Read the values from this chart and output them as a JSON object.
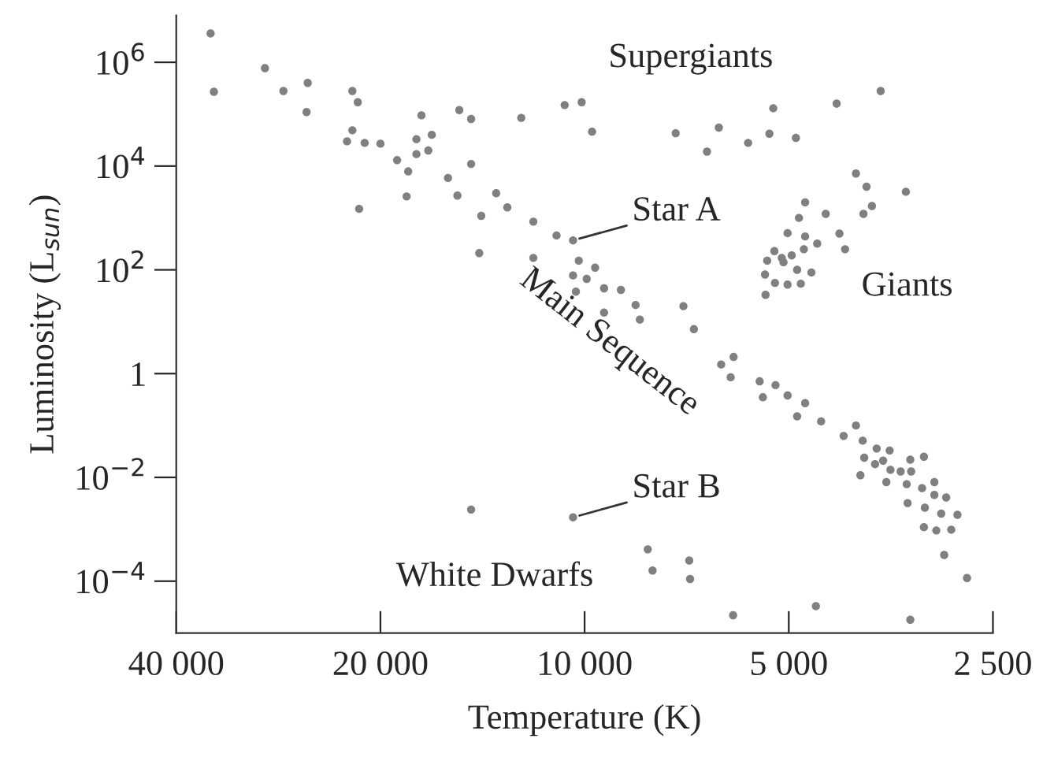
{
  "chart_data": {
    "type": "scatter",
    "xlabel": "Temperature (K)",
    "ylabel": "Luminosity (L$_{sun}$)",
    "log": "xy",
    "grid": false,
    "marker": "circle",
    "xlim": [
      40000,
      2500
    ],
    "xticks": [
      {
        "value": 40000,
        "label": "40 000"
      },
      {
        "value": 20000,
        "label": "20 000"
      },
      {
        "value": 10000,
        "label": "10 000"
      },
      {
        "value": 5000,
        "label": "5 000"
      },
      {
        "value": 2500,
        "label": "2 500"
      }
    ],
    "ylim": [
      1e-05,
      8000000.0
    ],
    "yticks": [
      {
        "value": 0.0001,
        "label": "10$^{−4}$"
      },
      {
        "value": 0.01,
        "label": "10$^{−2}$"
      },
      1,
      {
        "value": 100,
        "label": "10$^{2}$"
      },
      {
        "value": 10000,
        "label": "10$^{4}$"
      },
      {
        "value": 1000000,
        "label": "10$^{6}$"
      }
    ],
    "annotations": [
      "Supergiants",
      "Giants",
      "Main Sequence",
      "White Dwarfs",
      {
        "text": "Star A",
        "x": 10400,
        "y": 370
      },
      {
        "text": "Star B",
        "x": 10400,
        "y": 0.0017
      }
    ],
    "series": [
      {
        "color": "#808080",
        "x": [
          35600,
          35200,
          29600,
          27800,
          25600,
          25700,
          22000,
          21600,
          22000,
          22400,
          21100,
          20000,
          21500,
          18900,
          18200,
          18300,
          17700,
          17700,
          17000,
          16800,
          17400,
          15900,
          15400,
          15300,
          14700,
          14700,
          14300,
          14200,
          13500,
          13000,
          12400,
          11900,
          11900,
          10700,
          10100,
          9750,
          11000,
          10400,
          10200,
          10400,
          9930,
          9650,
          10300,
          9360,
          8840,
          9360,
          8410,
          8290,
          7150,
          6900,
          7340,
          6340,
          6600,
          5740,
          5340,
          5270,
          4880,
          4250,
          3660,
          3980,
          3840,
          3360,
          3770,
          3880,
          4730,
          4410,
          4830,
          5020,
          4730,
          4540,
          4210,
          4130,
          4750,
          4950,
          5120,
          5250,
          5380,
          5090,
          4860,
          4630,
          5420,
          5240,
          5020,
          4800,
          5410,
          14700,
          6290,
          6030,
          6090,
          5520,
          5230,
          5460,
          5020,
          4730,
          4860,
          4480,
          3980,
          4150,
          3890,
          3710,
          3550,
          3870,
          3730,
          3630,
          3310,
          3160,
          3540,
          3420,
          3300,
          3920,
          3590,
          3350,
          3180,
          3050,
          3050,
          2930,
          3340,
          3150,
          2980,
          2820,
          3160,
          3030,
          2880,
          2950,
          2730,
          10400,
          8070,
          7940,
          7010,
          6990,
          6040,
          4560,
          3310
        ],
        "values": [
          3600000.0,
          270000.0,
          770000.0,
          280000.0,
          400000.0,
          110000.0,
          280000.0,
          170000.0,
          49000.0,
          30000.0,
          28000.0,
          27000.0,
          1500.0,
          13000.0,
          7900.0,
          2600.0,
          33000.0,
          17000.0,
          20000.0,
          40000.0,
          95000.0,
          5900.0,
          2700.0,
          120000.0,
          81000.0,
          11000.0,
          210,
          1100.0,
          3000.0,
          1600.0,
          85000.0,
          850,
          170,
          150000.0,
          170000.0,
          46000.0,
          460,
          370,
          150,
          78,
          67,
          110,
          38,
          44,
          41,
          15,
          21,
          11,
          20,
          7.2,
          43000.0,
          55000.0,
          19000.0,
          28000.0,
          42000.0,
          130000.0,
          35000.0,
          160000.0,
          280000.0,
          7200.0,
          4000.0,
          3200.0,
          1700.0,
          1200.0,
          2000.0,
          1200.0,
          1000.0,
          510,
          440,
          320,
          500,
          250,
          250,
          190,
          170,
          230,
          150,
          140,
          100,
          89,
          81,
          56,
          52,
          54,
          33,
          0.0024,
          1.5,
          2.1,
          0.85,
          0.71,
          0.6,
          0.35,
          0.38,
          0.27,
          0.15,
          0.12,
          0.1,
          0.063,
          0.051,
          0.036,
          0.033,
          0.024,
          0.018,
          0.021,
          0.022,
          0.025,
          0.014,
          0.013,
          0.013,
          0.011,
          0.0081,
          0.0074,
          0.0062,
          0.0081,
          0.0046,
          0.0041,
          0.0032,
          0.0026,
          0.002,
          0.0019,
          0.0011,
          0.00095,
          0.00098,
          0.00032,
          0.000115,
          0.0017,
          0.00041,
          0.00016,
          0.00025,
          0.00011,
          2.2e-05,
          3.3e-05,
          1.8e-05
        ]
      }
    ]
  }
}
